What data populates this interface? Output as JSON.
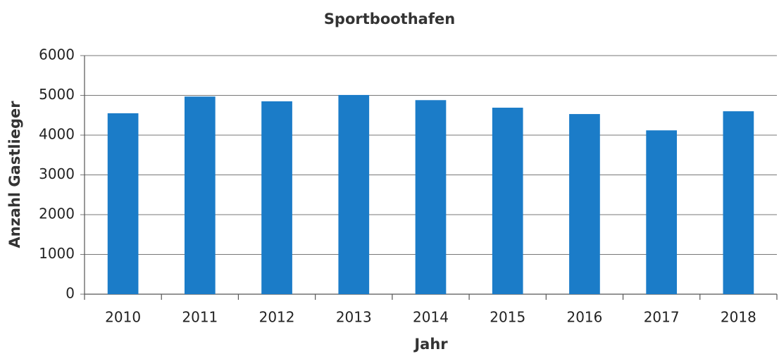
{
  "chart_data": {
    "type": "bar",
    "title": "Sportboothafen",
    "x_label": "Jahr",
    "y_label": "Anzahl Gastlieger",
    "categories": [
      "2010",
      "2011",
      "2012",
      "2013",
      "2014",
      "2015",
      "2016",
      "2017",
      "2018"
    ],
    "values": [
      4550,
      4970,
      4850,
      5010,
      4880,
      4690,
      4530,
      4120,
      4600
    ],
    "color": "#1b7cc8",
    "ylim": [
      0,
      6000
    ],
    "yticks": [
      0,
      1000,
      2000,
      3000,
      4000,
      5000,
      6000
    ],
    "grid": true
  }
}
